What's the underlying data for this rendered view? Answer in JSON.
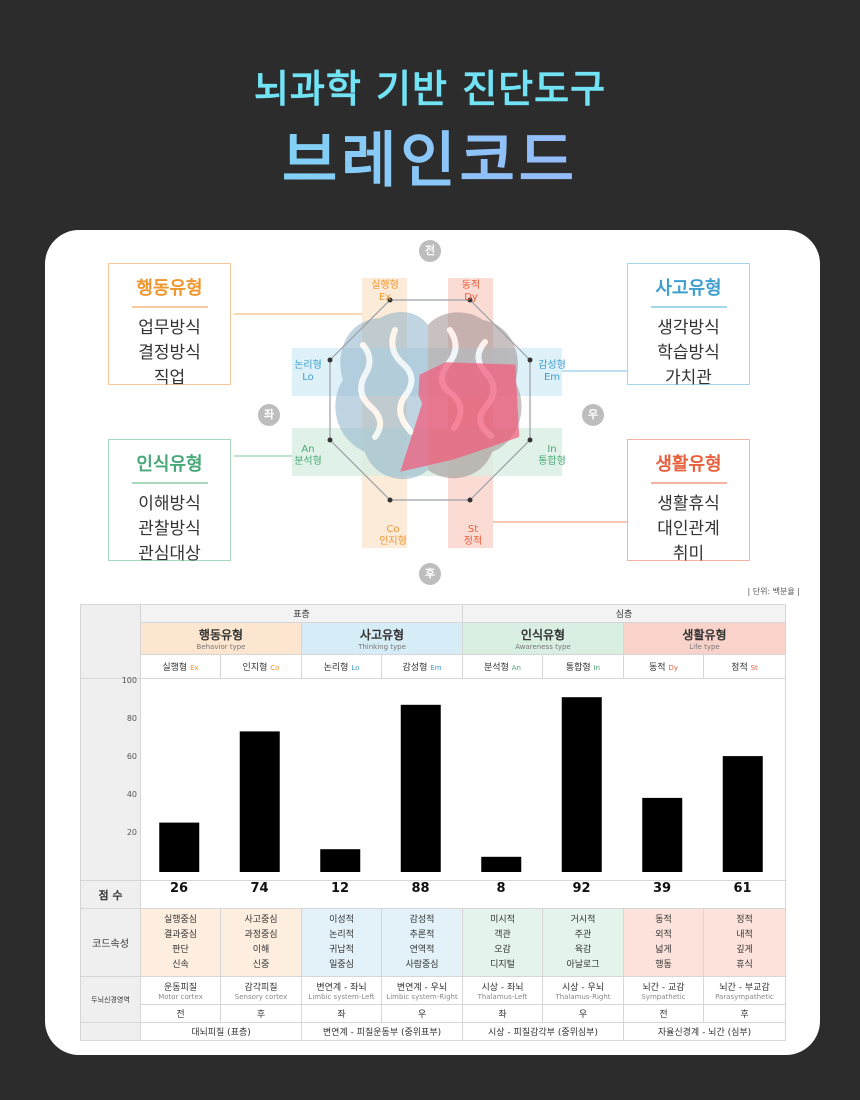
{
  "header": {
    "subtitle": "뇌과학 기반 진단도구",
    "title": "브레인코드"
  },
  "colors": {
    "behavior": "#f6a24a",
    "thinking": "#5ab5de",
    "awareness": "#62bf8e",
    "life": "#f07a5d",
    "polygon": "#f25a7a",
    "bar": "#000000"
  },
  "diagram": {
    "top": "전",
    "bottom": "후",
    "left": "좌",
    "right": "우",
    "boxes": {
      "behavior": {
        "title": "행동유형",
        "items": [
          "업무방식",
          "결정방식",
          "직업"
        ]
      },
      "thinking": {
        "title": "사고유형",
        "items": [
          "생각방식",
          "학습방식",
          "가치관"
        ]
      },
      "awareness": {
        "title": "인식유형",
        "items": [
          "이해방식",
          "관찰방식",
          "관심대상"
        ]
      },
      "life": {
        "title": "생활유형",
        "items": [
          "생활휴식",
          "대인관계",
          "취미"
        ]
      }
    },
    "axes": {
      "ex": {
        "ko": "실행형",
        "code": "Ex"
      },
      "dy": {
        "ko": "동적",
        "code": "Dy"
      },
      "lo": {
        "ko": "논리형",
        "code": "Lo"
      },
      "em": {
        "ko": "감성형",
        "code": "Em"
      },
      "an": {
        "ko": "분석형",
        "code": "An"
      },
      "in": {
        "ko": "통합형",
        "code": "In"
      },
      "co": {
        "ko": "인지형",
        "code": "Co"
      },
      "st": {
        "ko": "정적",
        "code": "St"
      }
    }
  },
  "table": {
    "unit": "| 단위: 백분율 |",
    "layers": [
      "표층",
      "심층"
    ],
    "groups": [
      {
        "ko": "행동유형",
        "en": "Behavior type"
      },
      {
        "ko": "사고유형",
        "en": "Thinking type"
      },
      {
        "ko": "인식유형",
        "en": "Awareness type"
      },
      {
        "ko": "생활유형",
        "en": "Life type"
      }
    ],
    "y_ticks": [
      "100",
      "80",
      "60",
      "40",
      "20"
    ],
    "score_label": "점  수",
    "attr_label": "코드속성",
    "brain_label": "두뇌신경영역",
    "regions": [
      {
        "ko": "운동피질",
        "en": "Motor cortex"
      },
      {
        "ko": "감각피질",
        "en": "Sensory cortex"
      },
      {
        "ko": "변연계 - 좌뇌",
        "en": "Limbic system-Left"
      },
      {
        "ko": "변연계 - 우뇌",
        "en": "Limbic system-Right"
      },
      {
        "ko": "시상 - 좌뇌",
        "en": "Thalamus-Left"
      },
      {
        "ko": "시상 - 우뇌",
        "en": "Thalamus-Right"
      },
      {
        "ko": "뇌간 - 교감",
        "en": "Sympathetic"
      },
      {
        "ko": "뇌간 - 부교감",
        "en": "Parasympathetic"
      }
    ],
    "directions": [
      "전",
      "후",
      "좌",
      "우",
      "좌",
      "우",
      "전",
      "후"
    ],
    "bottom": [
      "대뇌피질 (표층)",
      "변연계 - 피질운동부 (중위표부)",
      "시상 - 피질감각부 (중위심부)",
      "자율신경계 - 뇌간 (심부)"
    ]
  },
  "chart_data": {
    "type": "bar",
    "categories": [
      "실행형 Ex",
      "인지형 Co",
      "논리형 Lo",
      "감성형 Em",
      "분석형 An",
      "통합형 In",
      "동적 Dy",
      "정적 St"
    ],
    "cat_ko": [
      "실행형",
      "인지형",
      "논리형",
      "감성형",
      "분석형",
      "통합형",
      "동적",
      "정적"
    ],
    "cat_code": [
      "Ex",
      "Co",
      "Lo",
      "Em",
      "An",
      "In",
      "Dy",
      "St"
    ],
    "values": [
      26,
      74,
      12,
      88,
      8,
      92,
      39,
      61
    ],
    "ylim": [
      0,
      100
    ],
    "attributes": [
      [
        "실행중심",
        "결과중심",
        "판단",
        "신속"
      ],
      [
        "사고중심",
        "과정중심",
        "이해",
        "신중"
      ],
      [
        "이성적",
        "논리적",
        "귀납적",
        "일중심"
      ],
      [
        "감성적",
        "추론적",
        "연역적",
        "사람중심"
      ],
      [
        "미시적",
        "객관",
        "오감",
        "디지털"
      ],
      [
        "거시적",
        "주관",
        "육감",
        "아날로그"
      ],
      [
        "동적",
        "외적",
        "넓게",
        "행동"
      ],
      [
        "정적",
        "내적",
        "깊게",
        "휴식"
      ]
    ]
  }
}
